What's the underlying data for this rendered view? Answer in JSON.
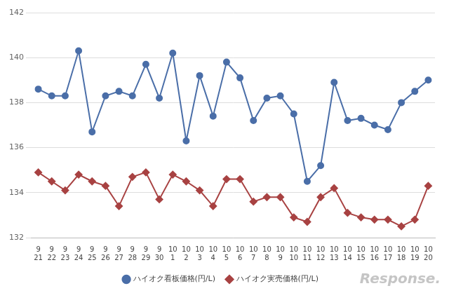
{
  "chart_data": {
    "type": "line",
    "categories": [
      "9\n21",
      "9\n22",
      "9\n23",
      "9\n24",
      "9\n25",
      "9\n26",
      "9\n27",
      "9\n28",
      "9\n29",
      "9\n30",
      "10\n1",
      "10\n2",
      "10\n3",
      "10\n4",
      "10\n5",
      "10\n6",
      "10\n7",
      "10\n8",
      "10\n9",
      "10\n10",
      "10\n11",
      "10\n12",
      "10\n13",
      "10\n14",
      "10\n15",
      "10\n16",
      "10\n17",
      "10\n18",
      "10\n19",
      "10\n20"
    ],
    "series": [
      {
        "name": "ハイオク看板価格(円/L)",
        "color": "#4a6ea8",
        "marker": "circle",
        "line_style": "solid",
        "values": [
          138.6,
          138.3,
          138.3,
          140.3,
          136.7,
          138.3,
          138.5,
          138.3,
          139.7,
          138.2,
          140.2,
          136.3,
          139.2,
          137.4,
          139.8,
          139.1,
          137.2,
          138.2,
          138.3,
          137.5,
          134.5,
          135.2,
          138.9,
          137.2,
          137.3,
          137.0,
          136.8,
          138.0,
          138.5,
          139.0
        ]
      },
      {
        "name": "ハイオク実売価格(円/L)",
        "color": "#a84242",
        "marker": "diamond",
        "line_style": "solid",
        "values": [
          134.9,
          134.5,
          134.1,
          134.8,
          134.5,
          134.3,
          133.4,
          134.7,
          134.9,
          133.7,
          134.8,
          134.5,
          134.1,
          133.4,
          134.6,
          134.6,
          133.6,
          133.8,
          133.8,
          132.9,
          132.7,
          133.8,
          134.2,
          133.1,
          132.9,
          132.8,
          132.8,
          132.5,
          132.8,
          134.3
        ]
      }
    ],
    "ylim": [
      132,
      142
    ],
    "yticks": [
      132,
      134,
      136,
      138,
      140,
      142
    ],
    "grid": true,
    "legend": "bottom",
    "annotations": [
      "Response."
    ]
  }
}
